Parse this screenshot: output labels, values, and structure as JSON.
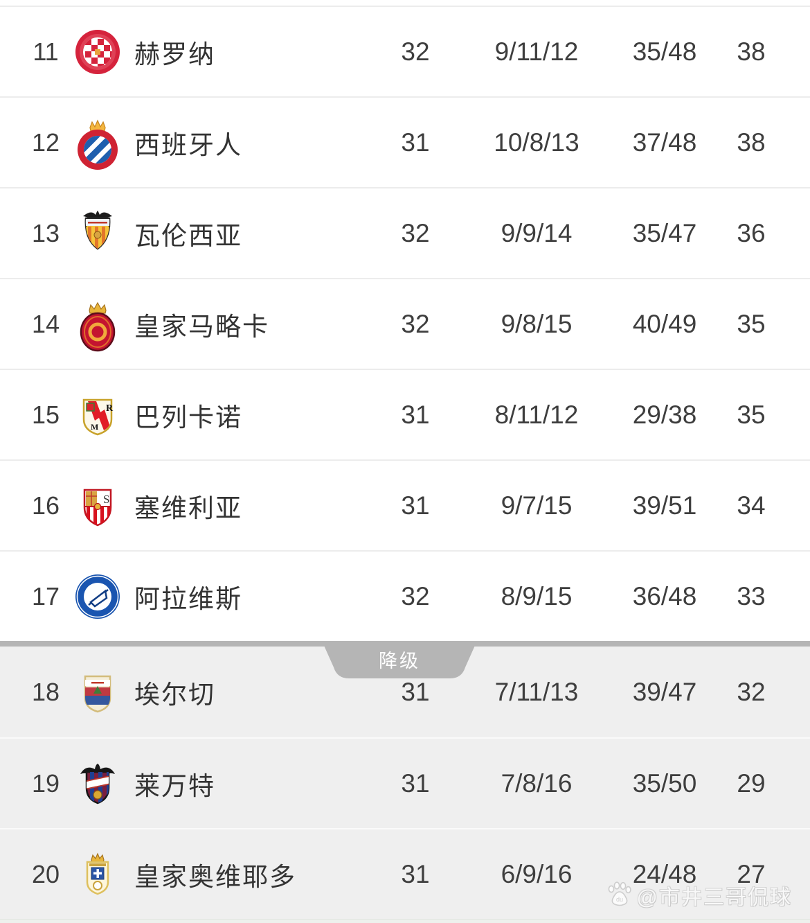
{
  "table": {
    "rows": [
      {
        "rank": 11,
        "team": "赫罗纳",
        "badge": "girona",
        "played": "32",
        "record": "9/11/12",
        "goals": "35/48",
        "points": "38",
        "zone": "safe"
      },
      {
        "rank": 12,
        "team": "西班牙人",
        "badge": "espanyol",
        "played": "31",
        "record": "10/8/13",
        "goals": "37/48",
        "points": "38",
        "zone": "safe"
      },
      {
        "rank": 13,
        "team": "瓦伦西亚",
        "badge": "valencia",
        "played": "32",
        "record": "9/9/14",
        "goals": "35/47",
        "points": "36",
        "zone": "safe"
      },
      {
        "rank": 14,
        "team": "皇家马略卡",
        "badge": "mallorca",
        "played": "32",
        "record": "9/8/15",
        "goals": "40/49",
        "points": "35",
        "zone": "safe"
      },
      {
        "rank": 15,
        "team": "巴列卡诺",
        "badge": "rayo-vallecano",
        "played": "31",
        "record": "8/11/12",
        "goals": "29/38",
        "points": "35",
        "zone": "safe"
      },
      {
        "rank": 16,
        "team": "塞维利亚",
        "badge": "sevilla",
        "played": "31",
        "record": "9/7/15",
        "goals": "39/51",
        "points": "34",
        "zone": "safe"
      },
      {
        "rank": 17,
        "team": "阿拉维斯",
        "badge": "alaves",
        "played": "32",
        "record": "8/9/15",
        "goals": "36/48",
        "points": "33",
        "zone": "safe"
      },
      {
        "rank": 18,
        "team": "埃尔切",
        "badge": "elche",
        "played": "31",
        "record": "7/11/13",
        "goals": "39/47",
        "points": "32",
        "zone": "relegation"
      },
      {
        "rank": 19,
        "team": "莱万特",
        "badge": "levante",
        "played": "31",
        "record": "7/8/16",
        "goals": "35/50",
        "points": "29",
        "zone": "relegation"
      },
      {
        "rank": 20,
        "team": "皇家奥维耶多",
        "badge": "real-oviedo",
        "played": "31",
        "record": "6/9/16",
        "goals": "24/48",
        "points": "27",
        "zone": "relegation"
      }
    ]
  },
  "divider": {
    "label": "降级"
  },
  "watermark": {
    "handle": "@市井三哥侃球",
    "logo": "baidu-paw"
  },
  "colors": {
    "relegation_bar": "#b5b5b5",
    "relegation_zone_bg": "#efefef",
    "row_separator": "#ececec",
    "text": "#3e3e3e"
  }
}
